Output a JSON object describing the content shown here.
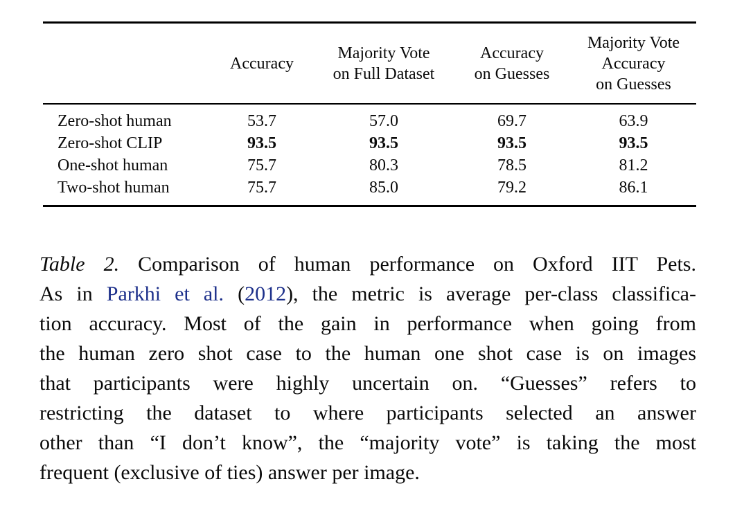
{
  "table": {
    "columns": [
      "",
      "Accuracy",
      "Majority Vote\non Full Dataset",
      "Accuracy\non Guesses",
      "Majority Vote\nAccuracy\non Guesses"
    ],
    "rows": [
      {
        "label": "Zero-shot human",
        "bold": false,
        "values": [
          "53.7",
          "57.0",
          "69.7",
          "63.9"
        ]
      },
      {
        "label": "Zero-shot CLIP",
        "bold": true,
        "values": [
          "93.5",
          "93.5",
          "93.5",
          "93.5"
        ]
      },
      {
        "label": "One-shot human",
        "bold": false,
        "values": [
          "75.7",
          "80.3",
          "78.5",
          "81.2"
        ]
      },
      {
        "label": "Two-shot human",
        "bold": false,
        "values": [
          "75.7",
          "85.0",
          "79.2",
          "86.1"
        ]
      }
    ]
  },
  "caption": {
    "label": "Table 2.",
    "link_color": "#1c2f8a",
    "text_color": "#0a0a0a",
    "lines": [
      [
        {
          "t": "Table 2.",
          "style": "italic"
        },
        {
          "t": " Comparison of human performance on Oxford IIT Pets."
        }
      ],
      [
        {
          "t": "As in "
        },
        {
          "t": "Parkhi et al.",
          "link": true
        },
        {
          "t": " ("
        },
        {
          "t": "2012",
          "link": true
        },
        {
          "t": "), the metric is average per-class classifica-"
        }
      ],
      [
        {
          "t": "tion accuracy.  Most of the gain in performance when going from"
        }
      ],
      [
        {
          "t": "the human zero shot case to the human one shot case is on images"
        }
      ],
      [
        {
          "t": "that participants were highly uncertain on.  “Guesses” refers to"
        }
      ],
      [
        {
          "t": "restricting the dataset to where participants selected an answer"
        }
      ],
      [
        {
          "t": "other than “I don’t know”, the “majority vote” is taking the most"
        }
      ],
      [
        {
          "t": "frequent (exclusive of ties) answer per image."
        }
      ]
    ]
  }
}
